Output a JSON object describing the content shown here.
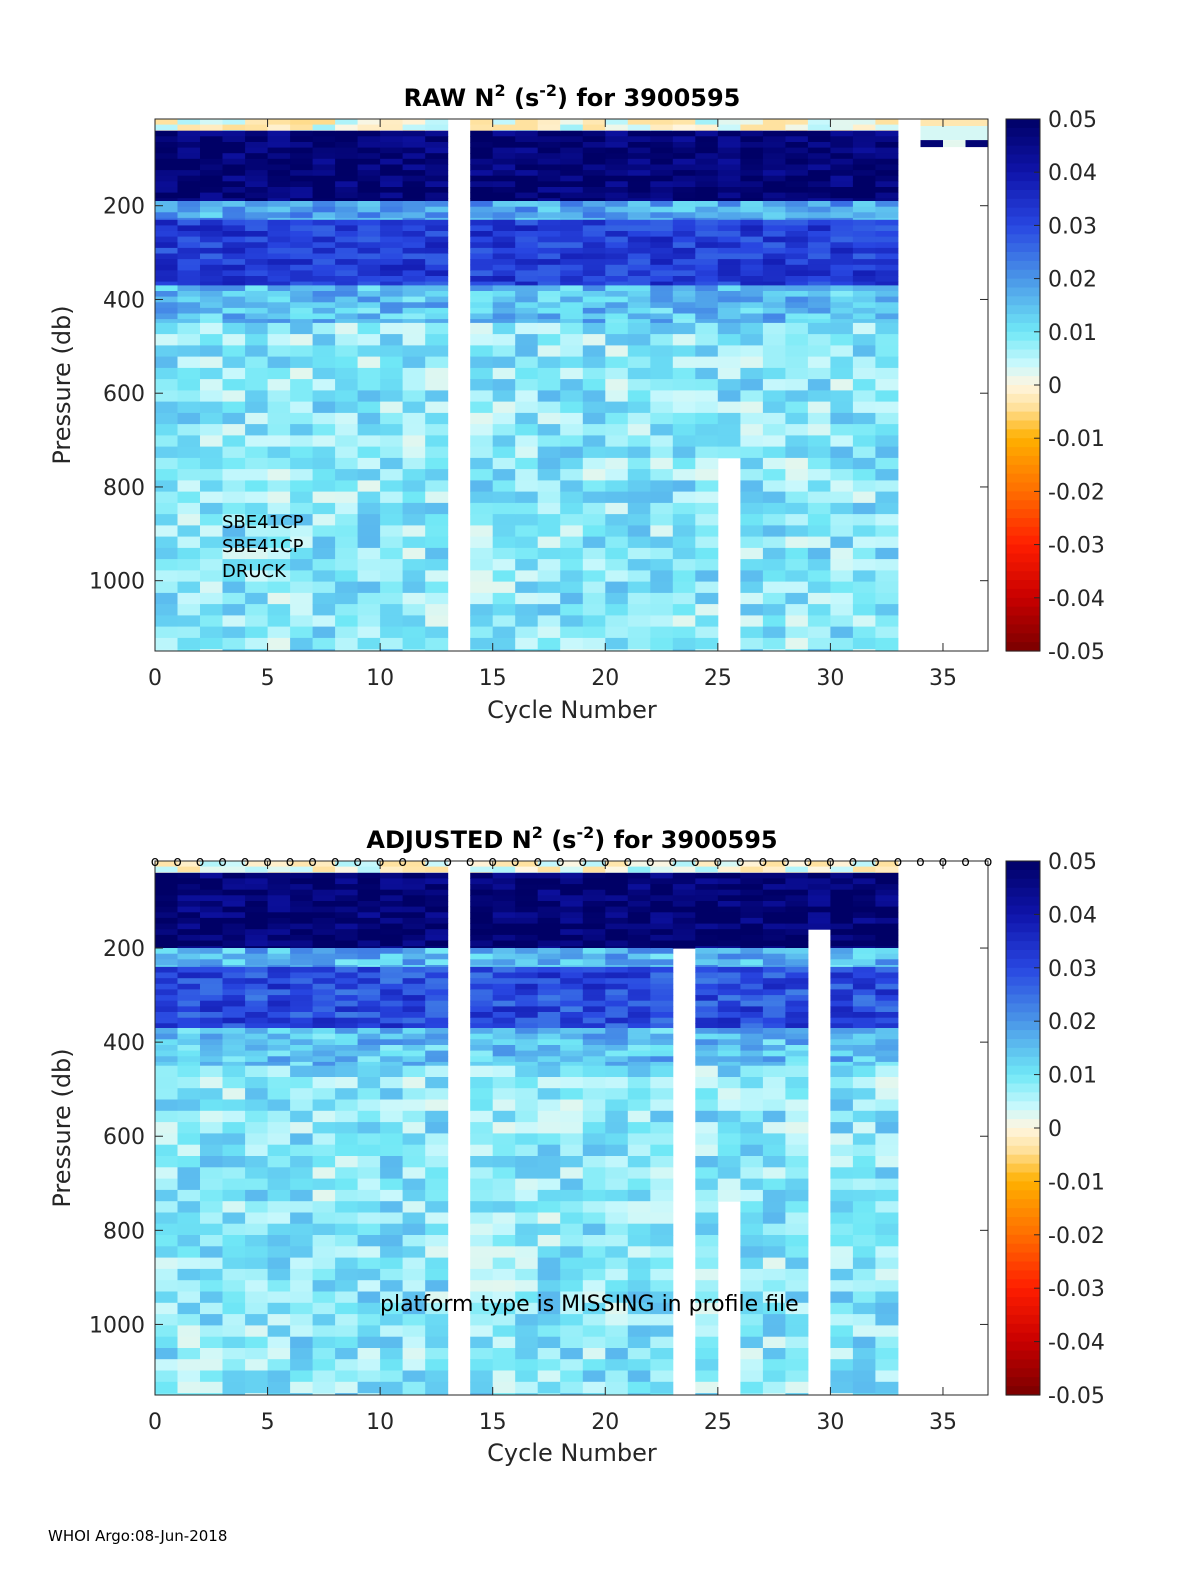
{
  "footer": "WHOI Argo:08-Jun-2018",
  "colorbar": {
    "ticks": [
      "0.05",
      "0.04",
      "0.03",
      "0.02",
      "0.01",
      "0",
      "-0.01",
      "-0.02",
      "-0.03",
      "-0.04",
      "-0.05"
    ],
    "colors": {
      "deep_navy": "#000066",
      "blue": "#2b3fe0",
      "mid_blue": "#4a8fe8",
      "light_blue": "#7fd0f0",
      "cyan": "#b8f4fb",
      "pale": "#fff4dc",
      "orange": "#ffb000",
      "red": "#ff1e00",
      "dark_red": "#7a0000"
    }
  },
  "chart_data": [
    {
      "type": "heatmap",
      "title_main": "RAW N",
      "title_sup1": "2",
      "title_mid": " (s",
      "title_sup2": "-2",
      "title_end": ") for 3900595",
      "xlabel": "Cycle Number",
      "ylabel": "Pressure (db)",
      "xlim": [
        0,
        37
      ],
      "ylim": [
        1150,
        15
      ],
      "x_ticks": [
        "0",
        "5",
        "10",
        "15",
        "20",
        "25",
        "30",
        "35"
      ],
      "y_ticks": [
        "200",
        "400",
        "600",
        "800",
        "1000"
      ],
      "clim": [
        -0.05,
        0.05
      ],
      "missing_cycles": [
        13
      ],
      "gaps": [
        {
          "cycle": 25,
          "from_pressure": 750,
          "to_pressure": 1150
        }
      ],
      "annotation_lines": [
        "SBE41CP",
        "SBE41CP",
        "DRUCK"
      ],
      "shallow_only_cycles": [
        34,
        35,
        36
      ],
      "layers": [
        {
          "top": 15,
          "bottom": 40,
          "value": 0.002
        },
        {
          "top": 40,
          "bottom": 190,
          "value": 0.048
        },
        {
          "top": 190,
          "bottom": 230,
          "value": 0.018
        },
        {
          "top": 230,
          "bottom": 370,
          "value": 0.032
        },
        {
          "top": 370,
          "bottom": 450,
          "value": 0.015
        },
        {
          "top": 450,
          "bottom": 1150,
          "value": 0.009
        }
      ]
    },
    {
      "type": "heatmap",
      "title_main": "ADJUSTED N",
      "title_sup1": "2",
      "title_mid": " (s",
      "title_sup2": "-2",
      "title_end": ") for 3900595",
      "xlabel": "Cycle Number",
      "ylabel": "Pressure (db)",
      "xlim": [
        0,
        37
      ],
      "ylim": [
        1150,
        15
      ],
      "x_ticks": [
        "0",
        "5",
        "10",
        "15",
        "20",
        "25",
        "30",
        "35"
      ],
      "y_ticks": [
        "200",
        "400",
        "600",
        "800",
        "1000"
      ],
      "clim": [
        -0.05,
        0.05
      ],
      "missing_cycles": [
        13,
        34,
        35,
        36
      ],
      "gaps": [
        {
          "cycle": 23,
          "from_pressure": 210,
          "to_pressure": 1150
        },
        {
          "cycle": 25,
          "from_pressure": 750,
          "to_pressure": 1150
        },
        {
          "cycle": 29,
          "from_pressure": 170,
          "to_pressure": 1150
        }
      ],
      "qc_marker": "o",
      "qc_cycles": [
        0,
        1,
        2,
        3,
        4,
        5,
        6,
        7,
        8,
        9,
        10,
        11,
        12,
        13,
        14,
        15,
        16,
        17,
        18,
        19,
        20,
        21,
        22,
        23,
        24,
        25,
        26,
        27,
        28,
        29,
        30,
        31,
        32,
        33,
        34,
        35,
        36,
        37
      ],
      "annotation": "platform type is MISSING in profile file",
      "layers": [
        {
          "top": 15,
          "bottom": 40,
          "value": 0.003
        },
        {
          "top": 40,
          "bottom": 200,
          "value": 0.048
        },
        {
          "top": 200,
          "bottom": 240,
          "value": 0.016
        },
        {
          "top": 240,
          "bottom": 370,
          "value": 0.03
        },
        {
          "top": 370,
          "bottom": 450,
          "value": 0.015
        },
        {
          "top": 450,
          "bottom": 1150,
          "value": 0.009
        }
      ]
    }
  ]
}
